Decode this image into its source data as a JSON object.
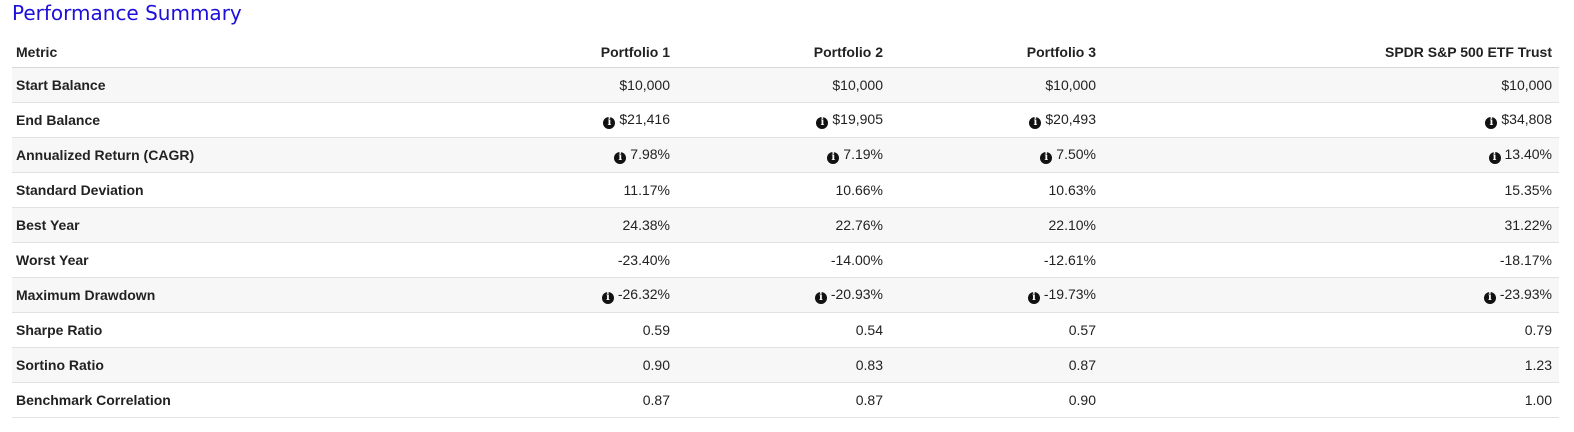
{
  "title": "Performance Summary",
  "columns": [
    "Metric",
    "Portfolio 1",
    "Portfolio 2",
    "Portfolio 3",
    "SPDR S&P 500 ETF Trust"
  ],
  "info_icon": "info-circle-icon",
  "colors": {
    "title": "#1c0fd9",
    "stripe": "#f7f7f7"
  },
  "rows": [
    {
      "metric": "Start Balance",
      "info": false,
      "values": [
        "$10,000",
        "$10,000",
        "$10,000",
        "$10,000"
      ]
    },
    {
      "metric": "End Balance",
      "info": true,
      "values": [
        "$21,416",
        "$19,905",
        "$20,493",
        "$34,808"
      ]
    },
    {
      "metric": "Annualized Return (CAGR)",
      "info": true,
      "values": [
        "7.98%",
        "7.19%",
        "7.50%",
        "13.40%"
      ]
    },
    {
      "metric": "Standard Deviation",
      "info": false,
      "values": [
        "11.17%",
        "10.66%",
        "10.63%",
        "15.35%"
      ]
    },
    {
      "metric": "Best Year",
      "info": false,
      "values": [
        "24.38%",
        "22.76%",
        "22.10%",
        "31.22%"
      ]
    },
    {
      "metric": "Worst Year",
      "info": false,
      "values": [
        "-23.40%",
        "-14.00%",
        "-12.61%",
        "-18.17%"
      ]
    },
    {
      "metric": "Maximum Drawdown",
      "info": true,
      "values": [
        "-26.32%",
        "-20.93%",
        "-19.73%",
        "-23.93%"
      ]
    },
    {
      "metric": "Sharpe Ratio",
      "info": false,
      "values": [
        "0.59",
        "0.54",
        "0.57",
        "0.79"
      ]
    },
    {
      "metric": "Sortino Ratio",
      "info": false,
      "values": [
        "0.90",
        "0.83",
        "0.87",
        "1.23"
      ]
    },
    {
      "metric": "Benchmark Correlation",
      "info": false,
      "values": [
        "0.87",
        "0.87",
        "0.90",
        "1.00"
      ]
    }
  ]
}
